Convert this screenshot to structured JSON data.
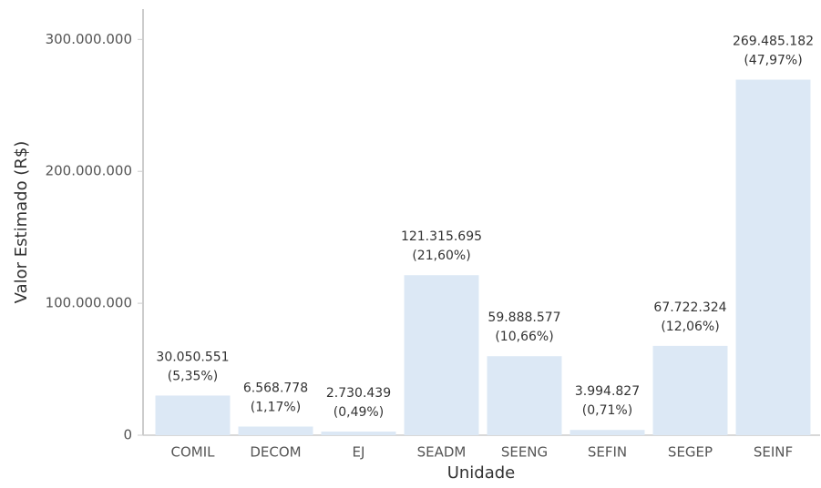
{
  "chart_data": {
    "type": "bar",
    "x_label": "Unidade",
    "y_label": "Valor Estimado (R$)",
    "categories": [
      "COMIL",
      "DECOM",
      "EJ",
      "SEADM",
      "SEENG",
      "SEFIN",
      "SEGEP",
      "SEINF"
    ],
    "values": [
      30050551,
      6568778,
      2730439,
      121315695,
      59888577,
      3994827,
      67722324,
      269485182
    ],
    "value_labels": [
      "30.050.551",
      "6.568.778",
      "2.730.439",
      "121.315.695",
      "59.888.577",
      "3.994.827",
      "67.722.324",
      "269.485.182"
    ],
    "share_labels": [
      "(5,35%)",
      "(1,17%)",
      "(0,49%)",
      "(21,60%)",
      "(10,66%)",
      "(0,71%)",
      "(12,06%)",
      "(47,97%)"
    ],
    "color": "#dce8f5",
    "ylim": [
      0,
      323000000
    ],
    "yticks": [
      0,
      {
        "value": 100000000,
        "label": "100.000.000"
      },
      {
        "value": 200000000,
        "label": "200.000.000"
      },
      {
        "value": 300000000,
        "label": "300.000.000"
      }
    ],
    "grid": false
  }
}
